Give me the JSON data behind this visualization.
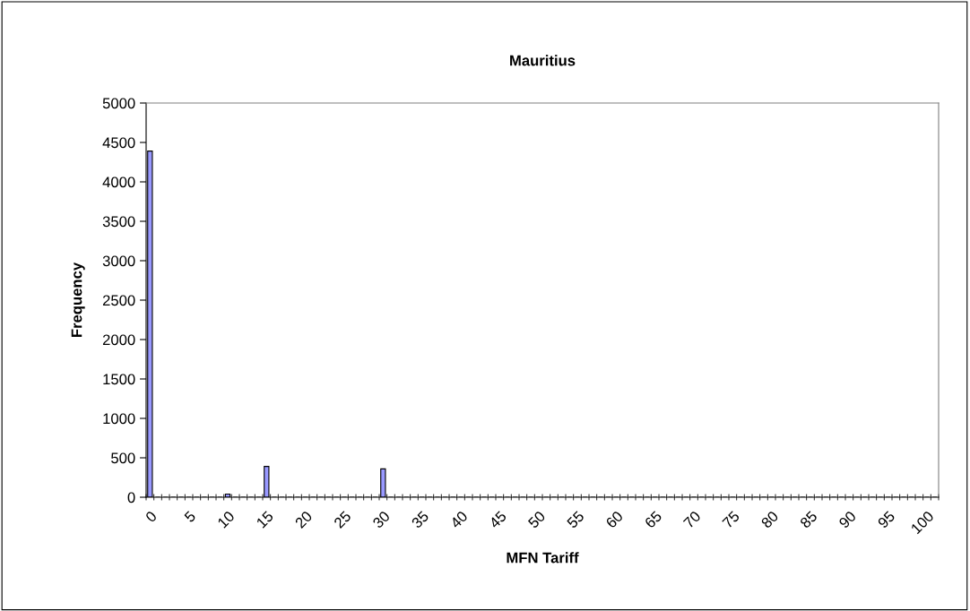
{
  "chart_data": {
    "type": "bar",
    "title": "Mauritius",
    "xlabel": "MFN Tariff",
    "ylabel": "Frequency",
    "categories": [
      "0",
      null,
      null,
      null,
      null,
      "5",
      null,
      null,
      null,
      null,
      "10",
      null,
      null,
      null,
      null,
      "15",
      null,
      null,
      null,
      null,
      "20",
      null,
      null,
      null,
      null,
      "25",
      null,
      null,
      null,
      null,
      "30",
      null,
      null,
      null,
      null,
      "35",
      null,
      null,
      null,
      null,
      "40",
      null,
      null,
      null,
      null,
      "45",
      null,
      null,
      null,
      null,
      "50",
      null,
      null,
      null,
      null,
      "55",
      null,
      null,
      null,
      null,
      "60",
      null,
      null,
      null,
      null,
      "65",
      null,
      null,
      null,
      null,
      "70",
      null,
      null,
      null,
      null,
      "75",
      null,
      null,
      null,
      null,
      "80",
      null,
      null,
      null,
      null,
      "85",
      null,
      null,
      null,
      null,
      "90",
      null,
      null,
      null,
      null,
      "95",
      null,
      null,
      null,
      null,
      "100",
      null
    ],
    "values": [
      4390,
      0,
      0,
      0,
      0,
      0,
      0,
      0,
      0,
      0,
      40,
      0,
      0,
      0,
      0,
      390,
      0,
      0,
      0,
      0,
      0,
      0,
      0,
      0,
      0,
      0,
      0,
      0,
      0,
      0,
      360,
      0,
      0,
      0,
      0,
      0,
      0,
      0,
      0,
      0,
      0,
      0,
      0,
      0,
      0,
      0,
      0,
      0,
      0,
      0,
      0,
      0,
      0,
      0,
      0,
      0,
      0,
      0,
      0,
      0,
      0,
      0,
      0,
      0,
      0,
      0,
      0,
      0,
      0,
      0,
      0,
      0,
      0,
      0,
      0,
      0,
      0,
      0,
      0,
      0,
      0,
      0,
      0,
      0,
      0,
      0,
      0,
      0,
      0,
      0,
      0,
      0,
      0,
      0,
      0,
      0,
      0,
      0,
      0,
      0,
      0,
      0
    ],
    "color": "#9999ff",
    "ylim": [
      0,
      5000
    ],
    "yticks": [
      0,
      500,
      1000,
      1500,
      2000,
      2500,
      3000,
      3500,
      4000,
      4500,
      5000
    ],
    "grid": false,
    "legend": false
  }
}
